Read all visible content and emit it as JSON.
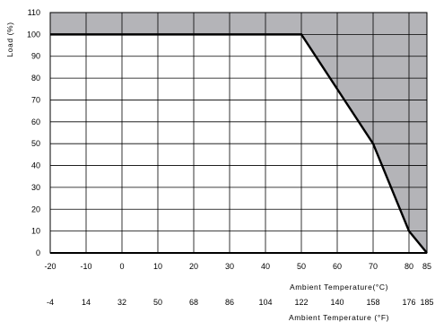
{
  "chart_data": {
    "type": "line",
    "title": "",
    "ylabel": "Load (%)",
    "xlabel": "Ambient Temperature(°C)",
    "xlabel_secondary": "Ambient Temperature (°F)",
    "xlim": [
      -20,
      85
    ],
    "ylim": [
      0,
      110
    ],
    "grid": true,
    "x_ticks": [
      -20,
      -10,
      0,
      10,
      20,
      30,
      40,
      50,
      60,
      70,
      80,
      85
    ],
    "x_tick_labels": [
      "-20",
      "-10",
      "0",
      "10",
      "20",
      "30",
      "40",
      "50",
      "60",
      "70",
      "80",
      "85"
    ],
    "y_ticks": [
      0,
      10,
      20,
      30,
      40,
      50,
      60,
      70,
      80,
      90,
      100,
      110
    ],
    "y_tick_labels": [
      "0",
      "10",
      "20",
      "30",
      "40",
      "50",
      "60",
      "70",
      "80",
      "90",
      "100",
      "110"
    ],
    "x_secondary_tick_labels": [
      "-4",
      "14",
      "32",
      "50",
      "68",
      "86",
      "104",
      "122",
      "140",
      "158",
      "176",
      "185"
    ],
    "series": [
      {
        "x": [
          -20,
          50,
          70,
          80,
          85
        ],
        "y": [
          100,
          100,
          50,
          10,
          0
        ]
      }
    ],
    "colors": {
      "shade": "#b4b4b8",
      "line": "#000000",
      "grid": "#000000"
    }
  }
}
